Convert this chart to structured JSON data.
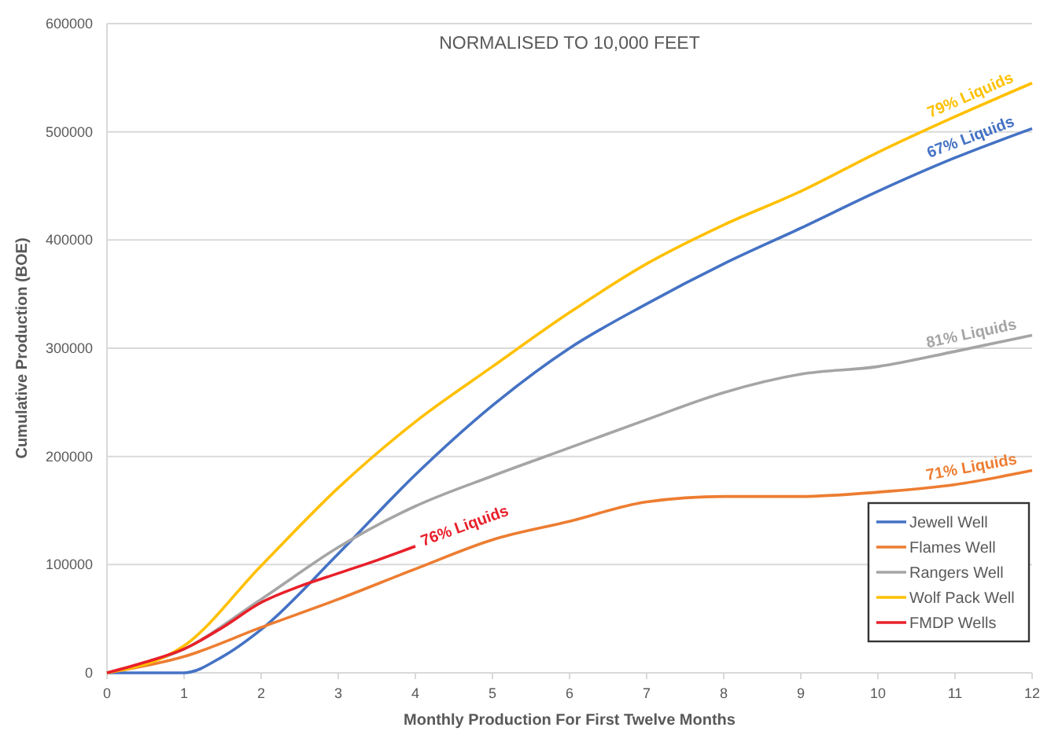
{
  "chart_data": {
    "type": "line",
    "title": "NORMALISED TO 10,000 FEET",
    "xlabel": "Monthly Production For First Twelve Months",
    "ylabel": "Cumulative Production (BOE)",
    "xlim": [
      0,
      12
    ],
    "xticks": [
      0,
      1,
      2,
      3,
      4,
      5,
      6,
      7,
      8,
      9,
      10,
      11,
      12
    ],
    "ylim": [
      0,
      600000
    ],
    "yticks": [
      0,
      100000,
      200000,
      300000,
      400000,
      500000,
      600000
    ],
    "grid": "y",
    "legend": "bottom right",
    "line_style": "solid",
    "marker": "none",
    "series": [
      {
        "name": "Jewell Well",
        "color": "#4472c4",
        "x": [
          0,
          0.5,
          1,
          1.5,
          2,
          3,
          4,
          5,
          6,
          7,
          8,
          9,
          10,
          11,
          12
        ],
        "values": [
          0,
          0,
          0,
          15000,
          40000,
          110000,
          183000,
          247000,
          300000,
          341000,
          378000,
          411000,
          445000,
          476000,
          503000
        ]
      },
      {
        "name": "Flames Well",
        "color": "#ed7d31",
        "x": [
          0,
          1,
          2,
          3,
          4,
          5,
          6,
          7,
          8,
          9,
          10,
          11,
          12
        ],
        "values": [
          0,
          15000,
          42000,
          68000,
          96000,
          123000,
          140000,
          158000,
          163000,
          163000,
          167000,
          174000,
          187000
        ]
      },
      {
        "name": "Rangers Well",
        "color": "#a5a5a5",
        "x": [
          0,
          1,
          2,
          3,
          4,
          5,
          6,
          7,
          8,
          9,
          10,
          11,
          12
        ],
        "values": [
          0,
          22000,
          68000,
          116000,
          154000,
          182000,
          208000,
          234000,
          259000,
          276000,
          283000,
          297000,
          312000
        ]
      },
      {
        "name": "Wolf Pack Well",
        "color": "#ffc000",
        "x": [
          0,
          1,
          2,
          3,
          4,
          5,
          6,
          7,
          8,
          9,
          10,
          11,
          12
        ],
        "values": [
          0,
          25000,
          99000,
          171000,
          232000,
          283000,
          333000,
          378000,
          414000,
          445000,
          481000,
          514000,
          545000
        ]
      },
      {
        "name": "FMDP Wells",
        "color": "#e8202a",
        "x": [
          0,
          0.5,
          1,
          1.5,
          2,
          2.5,
          3,
          3.5,
          4
        ],
        "values": [
          0,
          10000,
          22000,
          42000,
          65000,
          80000,
          92000,
          104000,
          117000
        ]
      }
    ],
    "annotations": [
      "79% Liquids",
      "67% Liquids",
      "81% Liquids",
      "71% Liquids",
      "76% Liquids"
    ]
  }
}
